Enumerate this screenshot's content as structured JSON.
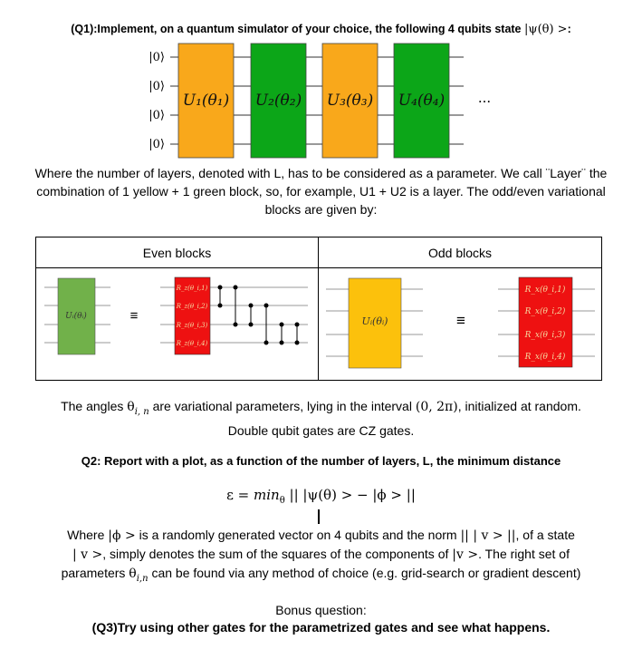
{
  "q1": {
    "text": "(Q1):Implement, on a quantum simulator of your choice, the following 4 qubits state",
    "state": "|ψ(θ) >",
    "colon": ":"
  },
  "circuit": {
    "qubit_labels": [
      "|0⟩",
      "|0⟩",
      "|0⟩",
      "|0⟩"
    ],
    "blocks": [
      {
        "label": "U₁(θ₁)",
        "color": "#f9a81b"
      },
      {
        "label": "U₂(θ₂)",
        "color": "#0ca618"
      },
      {
        "label": "U₃(θ₃)",
        "color": "#f9a81b"
      },
      {
        "label": "U₄(θ₄)",
        "color": "#0ca618"
      }
    ],
    "ellipsis": "···"
  },
  "layers_paragraph": "Where the number of layers, denoted with L, has to be considered as a parameter. We call ¨Layer¨ the combination of 1 yellow + 1 green block, so, for example, U1 + U2 is a layer. The odd/even variational blocks are given by:",
  "table": {
    "even_header": "Even blocks",
    "odd_header": "Odd blocks",
    "even_block_label": "Uᵢ(θᵢ)",
    "odd_block_label": "Uᵢ(θᵢ)",
    "equiv": "≡",
    "even_gates": [
      "R_z(θ_i,1)",
      "R_z(θ_i,2)",
      "R_z(θ_i,3)",
      "R_z(θ_i,4)"
    ],
    "odd_gates": [
      "R_x(θ_i,1)",
      "R_x(θ_i,2)",
      "R_x(θ_i,3)",
      "R_x(θ_i,4)"
    ],
    "colors": {
      "even_block": "#71b14a",
      "odd_block": "#fcc10c",
      "gate": "#ee1111"
    }
  },
  "angles": {
    "pre": "The angles",
    "theta": "θ",
    "sub": "i, n",
    "mid": "are variational parameters, lying in the interval",
    "interval": "(0,   2π)",
    "post": ", initialized at random.",
    "line2": "Double qubit gates are CZ gates."
  },
  "q2": "Q2: Report with a plot, as a function of the number of layers, L, the minimum distance",
  "equation": {
    "eps": "ε =",
    "min": "min",
    "min_sub": "θ",
    "body": "|| |ψ(θ) >   −  |ϕ >  ||"
  },
  "where": {
    "line1_pre": "Where",
    "phi": "|ϕ >",
    "line1_mid": "is a randomly generated vector on 4 qubits and the norm",
    "norm": "||  |  v >   ||",
    "line1_post": ", of a state",
    "line2_ket": "|  v >",
    "line2_mid": ", simply denotes the sum of the squares of the components of",
    "line2_ket2": "|v   >",
    "line2_post": ". The right set of",
    "line3_pre": "parameters",
    "line3_theta": "θ",
    "line3_sub": "i,n",
    "line3_post": "can be found via any method of choice (e.g. grid-search or gradient descent)"
  },
  "bonus": "Bonus question:",
  "q3": "(Q3)Try using other gates for the parametrized gates and see what happens."
}
